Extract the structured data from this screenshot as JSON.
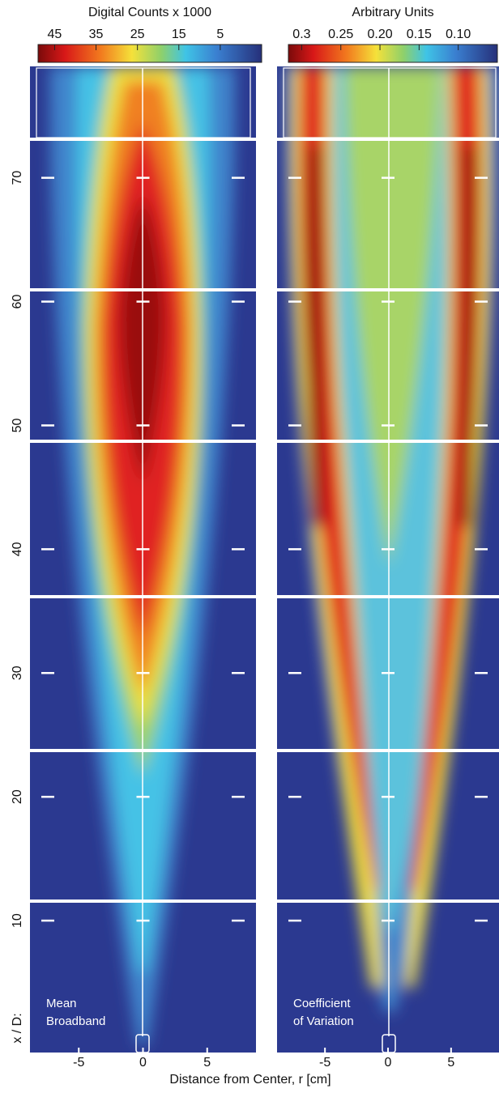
{
  "chart_data": [
    {
      "type": "heatmap",
      "colorbar_label": "Digital Counts x 1000",
      "clim": [
        49,
        -5
      ],
      "cticks": [
        45,
        35,
        25,
        15,
        5
      ],
      "xlim": [
        -8.8,
        8.8
      ],
      "xticks": [
        -5,
        0,
        5
      ],
      "ylim": [
        0,
        79
      ],
      "yticks": [
        10,
        20,
        30,
        40,
        50,
        60,
        70
      ],
      "ylabel": "x / D:",
      "annotation": [
        "Mean",
        "Broadband"
      ]
    },
    {
      "type": "heatmap",
      "colorbar_label": "Arbitrary Units",
      "clim": [
        0.317,
        0.05
      ],
      "cticks": [
        0.3,
        0.25,
        {
          "value": 0.2,
          "label": "0.20"
        },
        0.15,
        {
          "value": 0.1,
          "label": "0.10"
        }
      ],
      "xlim": [
        -8.8,
        8.8
      ],
      "xticks": [
        -5,
        0,
        5
      ],
      "ylim": [
        0,
        79
      ],
      "yticks": [
        10,
        20,
        30,
        40,
        50,
        60,
        70
      ],
      "annotation": [
        "Coefficient",
        "of Variation"
      ]
    }
  ],
  "figure": {
    "xlabel": "Distance from Center, r [cm]"
  }
}
